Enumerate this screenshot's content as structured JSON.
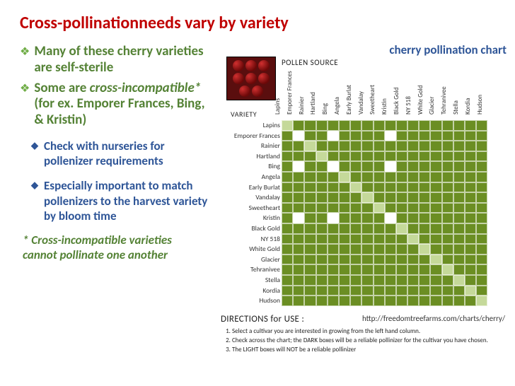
{
  "title": "Cross-pollinationneeds vary by variety",
  "right_title": "cherry  pollination chart",
  "bullets_green": [
    {
      "pre": "Many of these cherry varieties are self-sterile",
      "italic": "",
      "post": ""
    },
    {
      "pre": " Some are ",
      "italic": "cross-incompatible*",
      "post": " (for ex. Emporer Frances, Bing, & Kristin)"
    }
  ],
  "bullets_blue": [
    {
      "pre": "Check with nurseries for ",
      "bold2": "pollenizer",
      "post": " requirements"
    },
    {
      "pre": "Especially important to match pollenizers to the harvest variety by bloom time",
      "bold2": "",
      "post": ""
    }
  ],
  "footnote": "* Cross-incompatible varieties cannot pollinate one another",
  "pollen_source_label": "POLLEN SOURCE",
  "variety_label": "VARIETY",
  "varieties": [
    "Lapins",
    "Emporer Frances",
    "Rainier",
    "Hartland",
    "Bing",
    "Angela",
    "Early Burlat",
    "Vandalay",
    "Sweetheart",
    "Kristin",
    "Black Gold",
    "NY 518",
    "White Gold",
    "Glacier",
    "Tehranivee",
    "Stella",
    "Kordia",
    "Hudson"
  ],
  "colors": {
    "dark": "#6b8e23",
    "light": "#c5d99a",
    "accent_red": "#c00000",
    "accent_blue": "#2e5597",
    "accent_green": "#548235"
  },
  "grid": [
    "LDDDDDDDDDDDDDDDDD",
    "DNDDNDDDDNDDDDDDDD",
    "DDLDDDDDDDDDDDDDDD",
    "DDDLDDDDDDDDDDDDDD",
    "DNDDNDDDDNDDDDDDDD",
    "DDDDDLDDDDDDDDDDDD",
    "DDDDDDLDDDDDDDDDDD",
    "DDDDDDDLDDDDDDDDDD",
    "DDDDDDDDLDDDDDDDDD",
    "DNDDNDDDDNDDDDDDDD",
    "DDDDDDDDDDLDDDDDDD",
    "DDDDDDDDDDDLDDDDDD",
    "DDDDDDDDDDDDLDDDDD",
    "DDDDDDDDDDDDDLDDDD",
    "DDDDDDDDDDDDDDLDDD",
    "DDDDDDDDDDDDDDDLDD",
    "DDDDDDDDDDDDDDDDLD",
    "DDDDDDDDDDDDDDDDDL"
  ],
  "cell_legend": {
    "D": "dark = reliable pollinizer",
    "L": "light = NOT reliable",
    "N": "white = incompatible"
  },
  "directions_header": "DIRECTIONS for USE :",
  "directions": [
    "Select a cultivar you are interested in growing from the left hand column.",
    "Check across the chart; the DARK boxes will be a reliable pollinizer for the cultivar you have chosen.",
    "The LIGHT boxes will NOT be a reliable pollinizer"
  ],
  "source_url": "http://freedomtreefarms.com/charts/cherry/"
}
